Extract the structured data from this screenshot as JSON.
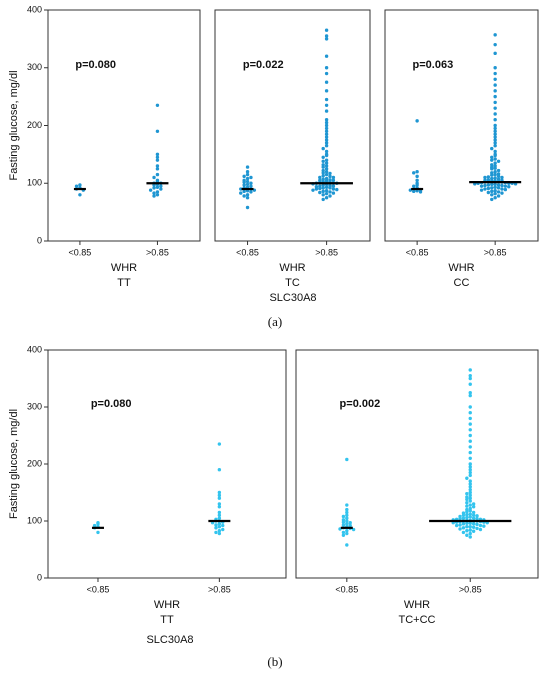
{
  "chart_data": [
    {
      "type": "dotplot",
      "ylabel": "Fasting glucose, mg/dl",
      "annotation": "p=0.080",
      "categories": [
        "<0.85",
        ">0.85"
      ],
      "xlabel": [
        "WHR",
        "TT"
      ],
      "color": "#1f96d2",
      "ylim": [
        0,
        400
      ],
      "yticks": [
        0,
        100,
        200,
        300,
        400
      ],
      "points": [
        [
          97,
          95,
          92,
          90,
          88,
          80
        ],
        [
          235,
          190,
          150,
          145,
          140,
          130,
          125,
          115,
          110,
          105,
          103,
          100,
          100,
          98,
          97,
          95,
          93,
          92,
          90,
          88,
          85,
          83,
          80,
          78
        ]
      ],
      "medians": [
        90,
        100
      ]
    },
    {
      "type": "dotplot",
      "annotation": "p=0.022",
      "categories": [
        "<0.85",
        ">0.85"
      ],
      "xlabel": [
        "WHR",
        "TC"
      ],
      "color": "#1f96d2",
      "ylim": [
        0,
        400
      ],
      "points": [
        [
          128,
          120,
          115,
          112,
          110,
          108,
          105,
          103,
          102,
          100,
          98,
          97,
          95,
          93,
          92,
          90,
          90,
          88,
          87,
          86,
          85,
          83,
          80,
          78,
          75,
          58
        ],
        [
          365,
          355,
          350,
          320,
          300,
          290,
          275,
          260,
          245,
          235,
          225,
          210,
          205,
          200,
          195,
          190,
          185,
          180,
          175,
          170,
          165,
          160,
          155,
          150,
          148,
          145,
          140,
          138,
          135,
          132,
          130,
          128,
          125,
          122,
          120,
          118,
          117,
          115,
          113,
          112,
          110,
          110,
          108,
          107,
          106,
          105,
          105,
          104,
          103,
          102,
          101,
          100,
          100,
          100,
          99,
          98,
          97,
          96,
          95,
          95,
          94,
          93,
          92,
          92,
          91,
          90,
          90,
          89,
          88,
          87,
          86,
          85,
          84,
          83,
          82,
          80,
          78,
          75,
          72
        ]
      ],
      "medians": [
        90,
        100
      ]
    },
    {
      "type": "dotplot",
      "annotation": "p=0.063",
      "categories": [
        "<0.85",
        ">0.85"
      ],
      "xlabel": [
        "WHR",
        "CC"
      ],
      "color": "#1f96d2",
      "ylim": [
        0,
        400
      ],
      "points": [
        [
          208,
          120,
          118,
          112,
          105,
          100,
          97,
          95,
          92,
          90,
          89,
          88,
          87,
          86,
          85
        ],
        [
          357,
          340,
          325,
          300,
          290,
          280,
          270,
          260,
          250,
          240,
          230,
          220,
          210,
          200,
          195,
          190,
          185,
          180,
          175,
          170,
          165,
          160,
          155,
          150,
          148,
          145,
          142,
          140,
          138,
          135,
          132,
          130,
          128,
          126,
          125,
          122,
          120,
          118,
          116,
          115,
          114,
          112,
          111,
          110,
          110,
          109,
          108,
          107,
          106,
          105,
          105,
          104,
          104,
          103,
          103,
          102,
          102,
          101,
          101,
          100,
          100,
          100,
          99,
          99,
          98,
          98,
          97,
          97,
          96,
          96,
          95,
          95,
          94,
          93,
          92,
          92,
          91,
          90,
          90,
          89,
          88,
          87,
          86,
          85,
          84,
          83,
          82,
          80,
          78,
          75,
          72
        ]
      ],
      "medians": [
        90,
        102
      ]
    },
    {
      "type": "dotplot",
      "ylabel": "Fasting glucose, mg/dl",
      "annotation": "p=0.080",
      "categories": [
        "<0.85",
        ">0.85"
      ],
      "xlabel": [
        "WHR",
        "TT"
      ],
      "color": "#33c4ee",
      "ylim": [
        0,
        400
      ],
      "yticks": [
        0,
        100,
        200,
        300,
        400
      ],
      "points": [
        [
          97,
          95,
          92,
          90,
          88,
          80
        ],
        [
          235,
          190,
          150,
          145,
          140,
          130,
          125,
          115,
          110,
          105,
          103,
          100,
          100,
          98,
          97,
          95,
          93,
          92,
          90,
          88,
          85,
          83,
          80,
          78
        ]
      ],
      "medians": [
        88,
        100
      ]
    },
    {
      "type": "dotplot",
      "annotation": "p=0.002",
      "categories": [
        "<0.85",
        ">0.85"
      ],
      "xlabel": [
        "WHR",
        "TC+CC"
      ],
      "color": "#33c4ee",
      "ylim": [
        0,
        400
      ],
      "points": [
        [
          208,
          128,
          120,
          115,
          110,
          108,
          105,
          102,
          100,
          98,
          97,
          95,
          93,
          92,
          90,
          88,
          87,
          86,
          85,
          83,
          80,
          78,
          75,
          58
        ],
        [
          365,
          355,
          350,
          340,
          325,
          320,
          300,
          290,
          280,
          270,
          260,
          250,
          240,
          230,
          220,
          210,
          200,
          195,
          190,
          185,
          180,
          175,
          170,
          165,
          160,
          155,
          150,
          148,
          145,
          142,
          140,
          138,
          135,
          132,
          130,
          128,
          126,
          125,
          122,
          120,
          118,
          116,
          115,
          114,
          112,
          111,
          110,
          110,
          109,
          108,
          107,
          106,
          105,
          105,
          104,
          104,
          103,
          103,
          102,
          102,
          101,
          101,
          100,
          100,
          100,
          99,
          99,
          98,
          98,
          97,
          97,
          96,
          96,
          95,
          95,
          94,
          93,
          92,
          92,
          91,
          90,
          90,
          89,
          88,
          87,
          86,
          85,
          84,
          83,
          82,
          80,
          78,
          75,
          72
        ]
      ],
      "medians": [
        88,
        100
      ]
    }
  ],
  "figure_labels": [
    {
      "group_label": "SLC30A8",
      "caption": "(a)"
    },
    {
      "group_label": "SLC30A8",
      "caption": "(b)"
    }
  ]
}
